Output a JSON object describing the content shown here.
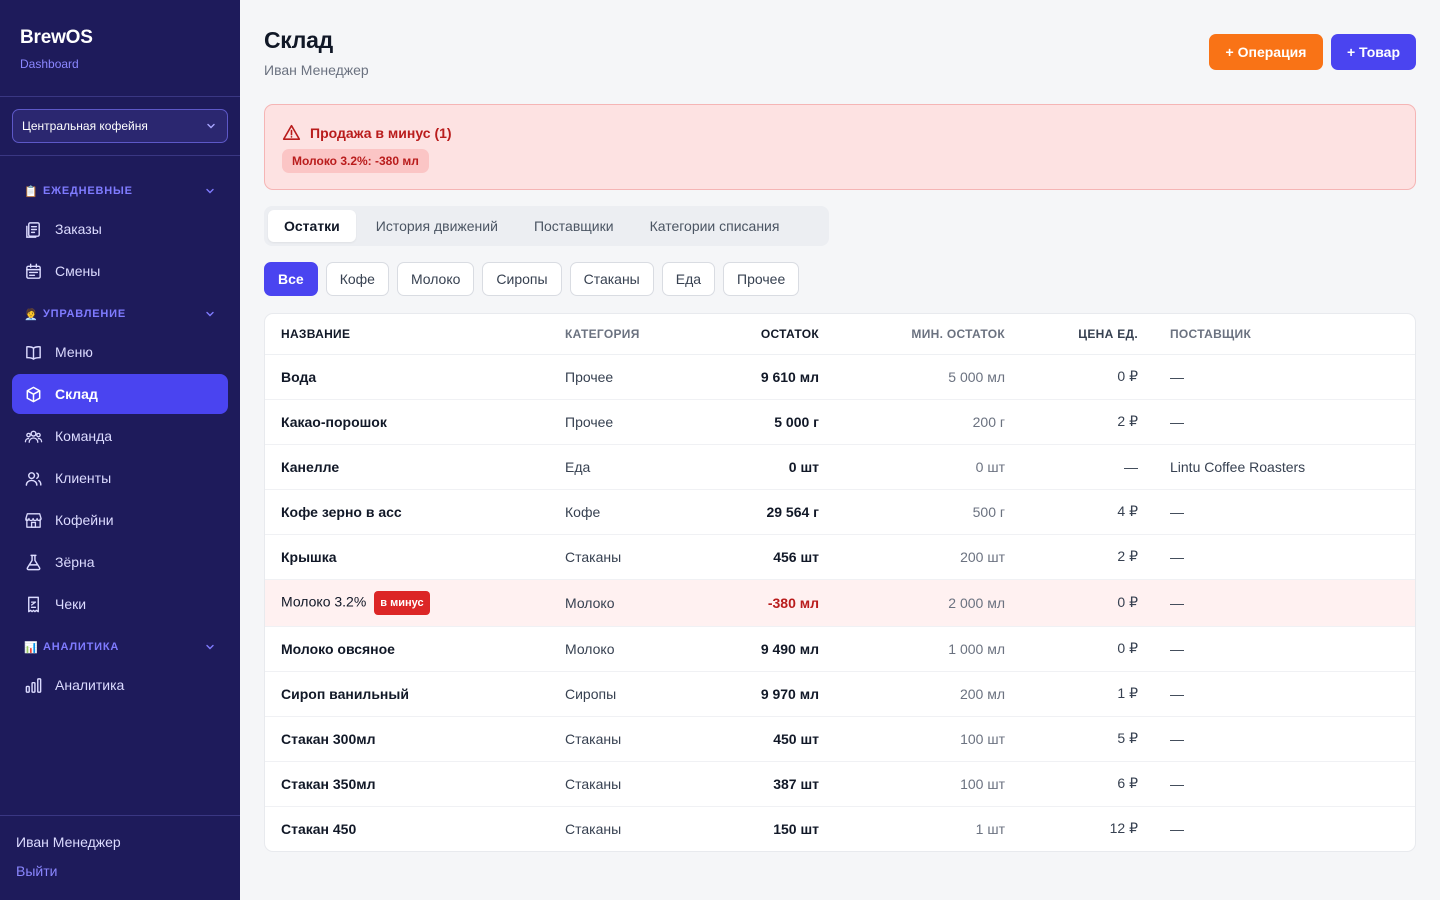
{
  "brand": {
    "title": "BrewOS",
    "subtitle": "Dashboard"
  },
  "shop_select": {
    "value": "Центральная кофейня"
  },
  "nav": {
    "sections": [
      {
        "emoji": "📋",
        "title": "ЕЖЕДНЕВНЫЕ",
        "items": [
          {
            "label": "Заказы",
            "icon": "orders-icon"
          },
          {
            "label": "Смены",
            "icon": "calendar-icon"
          }
        ]
      },
      {
        "emoji": "🧑‍💼",
        "title": "УПРАВЛЕНИЕ",
        "items": [
          {
            "label": "Меню",
            "icon": "book-icon"
          },
          {
            "label": "Склад",
            "icon": "box-icon",
            "active": true
          },
          {
            "label": "Команда",
            "icon": "team-icon"
          },
          {
            "label": "Клиенты",
            "icon": "users-icon"
          },
          {
            "label": "Кофейни",
            "icon": "store-icon"
          },
          {
            "label": "Зёрна",
            "icon": "flask-icon"
          },
          {
            "label": "Чеки",
            "icon": "receipt-icon"
          }
        ]
      },
      {
        "emoji": "📊",
        "title": "АНАЛИТИКА",
        "items": [
          {
            "label": "Аналитика",
            "icon": "chart-icon"
          }
        ]
      }
    ]
  },
  "footer": {
    "user": "Иван Менеджер",
    "logout": "Выйти"
  },
  "header": {
    "title": "Склад",
    "user": "Иван Менеджер"
  },
  "actions": {
    "operation": "+ Операция",
    "item": "+ Товар"
  },
  "alert": {
    "title": "Продажа в минус (1)",
    "chip": "Молоко 3.2%: -380 мл"
  },
  "tabs": [
    "Остатки",
    "История движений",
    "Поставщики",
    "Категории списания"
  ],
  "filters": [
    "Все",
    "Кофе",
    "Молоко",
    "Сиропы",
    "Стаканы",
    "Еда",
    "Прочее"
  ],
  "table": {
    "columns": [
      "НАЗВАНИЕ",
      "КАТЕГОРИЯ",
      "ОСТАТОК",
      "МИН. ОСТАТОК",
      "ЦЕНА ЕД.",
      "ПОСТАВЩИК"
    ],
    "negative_badge": "в минус",
    "rows": [
      {
        "name": "Вода",
        "category": "Прочее",
        "stock": "9 610 мл",
        "min": "5 000 мл",
        "price": "0 ₽",
        "supplier": "—"
      },
      {
        "name": "Какао-порошок",
        "category": "Прочее",
        "stock": "5 000 г",
        "min": "200 г",
        "price": "2 ₽",
        "supplier": "—"
      },
      {
        "name": "Канелле",
        "category": "Еда",
        "stock": "0 шт",
        "min": "0 шт",
        "price": "—",
        "supplier": "Lintu Coffee Roasters"
      },
      {
        "name": "Кофе зерно в асс",
        "category": "Кофе",
        "stock": "29 564 г",
        "min": "500 г",
        "price": "4 ₽",
        "supplier": "—"
      },
      {
        "name": "Крышка",
        "category": "Стаканы",
        "stock": "456 шт",
        "min": "200 шт",
        "price": "2 ₽",
        "supplier": "—"
      },
      {
        "name": "Молоко 3.2%",
        "category": "Молоко",
        "stock": "-380 мл",
        "min": "2 000 мл",
        "price": "0 ₽",
        "supplier": "—",
        "negative": true
      },
      {
        "name": "Молоко овсяное",
        "category": "Молоко",
        "stock": "9 490 мл",
        "min": "1 000 мл",
        "price": "0 ₽",
        "supplier": "—"
      },
      {
        "name": "Сироп ванильный",
        "category": "Сиропы",
        "stock": "9 970 мл",
        "min": "200 мл",
        "price": "1 ₽",
        "supplier": "—"
      },
      {
        "name": "Стакан 300мл",
        "category": "Стаканы",
        "stock": "450 шт",
        "min": "100 шт",
        "price": "5 ₽",
        "supplier": "—"
      },
      {
        "name": "Стакан 350мл",
        "category": "Стаканы",
        "stock": "387 шт",
        "min": "100 шт",
        "price": "6 ₽",
        "supplier": "—"
      },
      {
        "name": "Стакан 450",
        "category": "Стаканы",
        "stock": "150 шт",
        "min": "1 шт",
        "price": "12 ₽",
        "supplier": "—"
      }
    ]
  },
  "colors": {
    "sidebar": "#1e1b5b",
    "accent": "#4a44f0",
    "orange": "#f97316",
    "danger": "#dc2626"
  }
}
